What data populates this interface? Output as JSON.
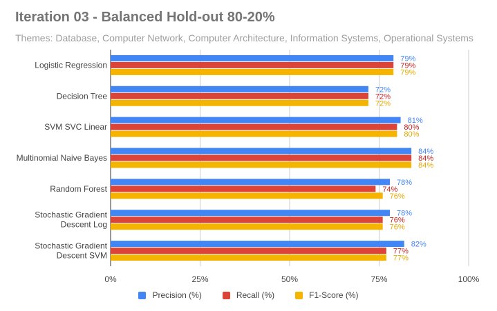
{
  "chart_data": {
    "type": "bar",
    "orientation": "horizontal",
    "title": "Iteration 03 - Balanced Hold-out 80-20%",
    "subtitle": "Themes: Database, Computer Network, Computer Architecture, Information Systems, Operational Systems",
    "categories": [
      [
        "Logistic Regression"
      ],
      [
        "Decision Tree"
      ],
      [
        "SVM SVC Linear"
      ],
      [
        "Multinomial Naive Bayes"
      ],
      [
        "Random Forest"
      ],
      [
        "Stochastic Gradient",
        "Descent Log"
      ],
      [
        "Stochastic Gradient",
        "Descent SVM"
      ]
    ],
    "series": [
      {
        "name": "Precision (%)",
        "color": "#4285f4",
        "label_color": "#4285f4",
        "values": [
          79,
          72,
          81,
          84,
          78,
          78,
          82
        ]
      },
      {
        "name": "Recall (%)",
        "color": "#db4437",
        "label_color": "#c5221f",
        "values": [
          79,
          72,
          80,
          84,
          74,
          76,
          77
        ]
      },
      {
        "name": "F1-Score (%)",
        "color": "#f4b400",
        "label_color": "#e0a800",
        "values": [
          79,
          72,
          80,
          84,
          76,
          76,
          77
        ]
      }
    ],
    "xlim": [
      0,
      100
    ],
    "xticks": [
      0,
      25,
      50,
      75,
      100
    ],
    "tick_suffix": "%",
    "data_label_suffix": "%",
    "grid": true,
    "legend_position": "bottom"
  }
}
